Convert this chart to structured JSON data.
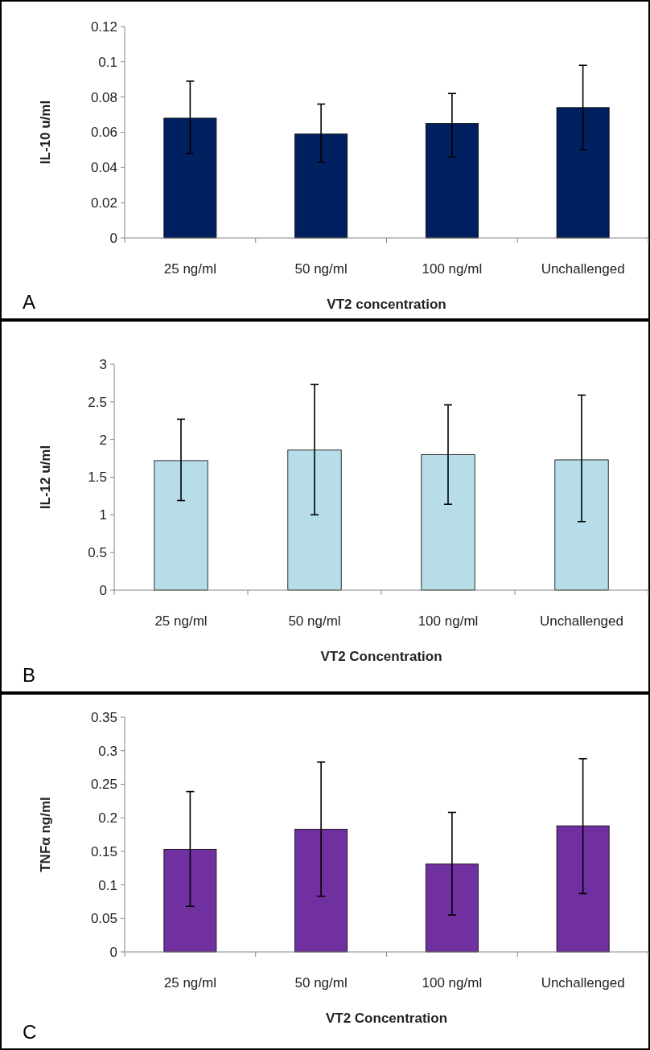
{
  "chart_data": [
    {
      "type": "bar",
      "xlabel": "VT2 concentration",
      "ylabel": "IL-10 u/ml",
      "categories": [
        "25 ng/ml",
        "50 ng/ml",
        "100 ng/ml",
        "Unchallenged"
      ],
      "values": [
        0.068,
        0.059,
        0.065,
        0.074
      ],
      "color": "#002060",
      "errors": [
        [
          0.048,
          0.089
        ],
        [
          0.043,
          0.076
        ],
        [
          0.046,
          0.082
        ],
        [
          0.05,
          0.098
        ]
      ],
      "ylim": [
        0,
        0.12
      ],
      "yticks": [
        0,
        0.02,
        0.04,
        0.06,
        0.08,
        {
          "value": 0.1,
          "label": "0.1"
        },
        0.12
      ],
      "grid": false,
      "annotations": [
        "A"
      ]
    },
    {
      "type": "bar",
      "xlabel": "VT2 Concentration",
      "ylabel": "IL-12 u/ml",
      "categories": [
        "25 ng/ml",
        "50 ng/ml",
        "100 ng/ml",
        "Unchallenged"
      ],
      "values": [
        1.72,
        1.86,
        1.8,
        1.73
      ],
      "color": "#b7dde8",
      "errors": [
        [
          1.19,
          2.27
        ],
        [
          1.0,
          2.73
        ],
        [
          1.14,
          2.46
        ],
        [
          0.91,
          2.59
        ]
      ],
      "ylim": [
        0,
        3
      ],
      "yticks": [
        0,
        0.5,
        1,
        1.5,
        2,
        2.5,
        3
      ],
      "grid": false,
      "annotations": [
        "B"
      ]
    },
    {
      "type": "bar",
      "xlabel": "VT2 Concentration",
      "ylabel": "TNFα ng/ml",
      "categories": [
        "25 ng/ml",
        "50 ng/ml",
        "100 ng/ml",
        "Unchallenged"
      ],
      "values": [
        0.153,
        0.183,
        0.131,
        0.188
      ],
      "color": "#7030a0",
      "errors": [
        [
          0.068,
          0.239
        ],
        [
          0.083,
          0.283
        ],
        [
          0.055,
          0.208
        ],
        [
          0.087,
          0.288
        ]
      ],
      "ylim": [
        0,
        0.35
      ],
      "yticks": [
        0,
        0.05,
        {
          "value": 0.1,
          "label": "0.1"
        },
        0.15,
        {
          "value": 0.2,
          "label": "0.2"
        },
        0.25,
        {
          "value": 0.3,
          "label": "0.3"
        },
        0.35
      ],
      "grid": false,
      "annotations": [
        "C"
      ]
    }
  ]
}
